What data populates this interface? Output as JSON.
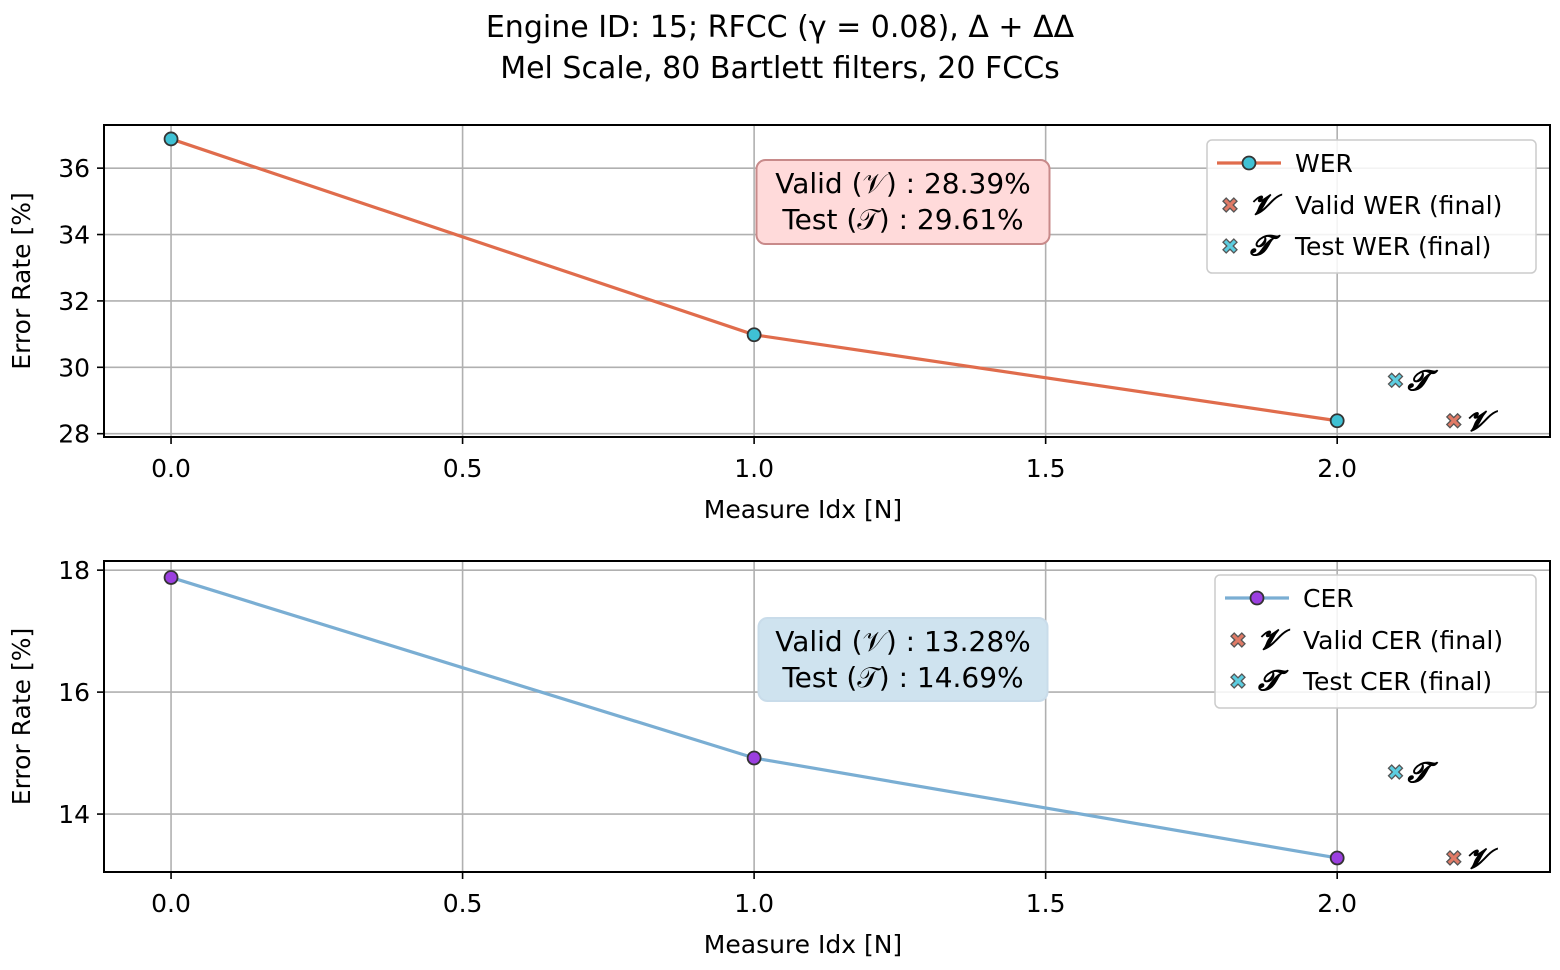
{
  "title_line1": "Engine ID: 15; RFCC (γ = 0.08), Δ + ΔΔ",
  "title_line2": "Mel Scale, 80 Bartlett filters, 20 FCCs",
  "colors": {
    "wer_line": "#e06c4c",
    "wer_marker": "#3fc1d4",
    "cer_line": "#7aaed3",
    "cer_marker": "#9b3fe0",
    "valid_marker": "#e07a66",
    "test_marker": "#5ccde0",
    "wer_box_fill": "#ffdada",
    "wer_box_stroke": "#c88a8a",
    "cer_box_fill": "#cfe3ef",
    "cer_box_stroke": "#c9dcea",
    "grid": "#b0b0b0"
  },
  "chart_data": [
    {
      "type": "line",
      "xlabel": "Measure Idx [N]",
      "ylabel": "Error Rate [%]",
      "xlim": [
        -0.115,
        2.365
      ],
      "ylim": [
        27.9,
        37.3
      ],
      "xticks": [
        0.0,
        0.5,
        1.0,
        1.5,
        2.0
      ],
      "xtick_labels": [
        "0.0",
        "0.5",
        "1.0",
        "1.5",
        "2.0"
      ],
      "yticks": [
        28,
        30,
        32,
        34,
        36
      ],
      "ytick_labels": [
        "28",
        "30",
        "32",
        "34",
        "36"
      ],
      "grid": true,
      "legend_position": "upper right",
      "series": [
        {
          "name": "WER",
          "x": [
            0,
            1,
            2
          ],
          "values": [
            36.88,
            30.98,
            28.39
          ]
        }
      ],
      "finals": [
        {
          "name": "Valid WER (final)",
          "symbol": "𝓥",
          "x": 2.2,
          "value": 28.39
        },
        {
          "name": "Test WER (final)",
          "symbol": "𝓣",
          "x": 2.1,
          "value": 29.61
        }
      ],
      "annotation": {
        "line1": "Valid (𝒱) :  28.39%",
        "line2": "Test (𝒯) :  29.61%"
      }
    },
    {
      "type": "line",
      "xlabel": "Measure Idx [N]",
      "ylabel": "Error Rate [%]",
      "xlim": [
        -0.115,
        2.365
      ],
      "ylim": [
        13.05,
        18.15
      ],
      "xticks": [
        0.0,
        0.5,
        1.0,
        1.5,
        2.0
      ],
      "xtick_labels": [
        "0.0",
        "0.5",
        "1.0",
        "1.5",
        "2.0"
      ],
      "yticks": [
        14,
        16,
        18
      ],
      "ytick_labels": [
        "14",
        "16",
        "18"
      ],
      "grid": true,
      "legend_position": "upper right",
      "series": [
        {
          "name": "CER",
          "x": [
            0,
            1,
            2
          ],
          "values": [
            17.88,
            14.92,
            13.28
          ]
        }
      ],
      "finals": [
        {
          "name": "Valid CER (final)",
          "symbol": "𝓥",
          "x": 2.2,
          "value": 13.28
        },
        {
          "name": "Test CER (final)",
          "symbol": "𝓣",
          "x": 2.1,
          "value": 14.69
        }
      ],
      "annotation": {
        "line1": "Valid (𝒱) :  13.28%",
        "line2": "Test (𝒯) :  14.69%"
      }
    }
  ]
}
